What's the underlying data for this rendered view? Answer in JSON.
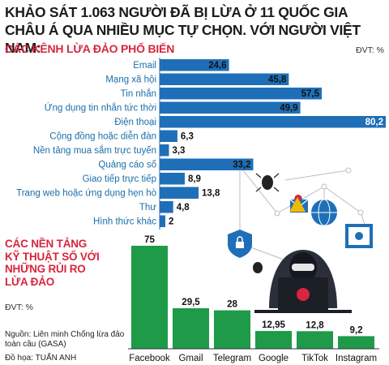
{
  "title": "KHẢO SÁT 1.063 NGƯỜI ĐÃ BỊ LỪA Ở 11 QUỐC GIA CHÂU Á QUA NHIỀU MỤC TỰ CHỌN. VỚI NGƯỜI VIỆT NAM:",
  "source_text": "Nguồn: Liên minh Chống lừa đảo toàn cầu (GASA)",
  "credit": "Đồ họa: TUẤN ANH",
  "colors": {
    "bar_blue": "#1f6fb8",
    "bar_green": "#1e9a48",
    "accent_red": "#d7263d",
    "label_blue": "#1b6ea8"
  },
  "chart_data": [
    {
      "type": "bar",
      "orientation": "horizontal",
      "title": "CÁC KÊNH LỪA ĐẢO PHỔ BIẾN",
      "unit_label": "ĐVT: %",
      "categories": [
        "Email",
        "Mạng xã hội",
        "Tin nhắn",
        "Ứng dụng tin nhắn tức thời",
        "Điện thoại",
        "Cộng đồng hoặc diễn đàn",
        "Nền tảng mua sắm trực tuyến",
        "Quảng cáo số",
        "Giao tiếp trực tiếp",
        "Trang web hoặc ứng dụng hẹn hò",
        "Thư",
        "Hình thức khác"
      ],
      "values": [
        24.6,
        45.8,
        57.5,
        49.9,
        80.2,
        6.3,
        3.3,
        33.2,
        8.9,
        13.8,
        4.8,
        2
      ],
      "value_labels": [
        "24,6",
        "45,8",
        "57,5",
        "49,9",
        "80,2",
        "6,3",
        "3,3",
        "33,2",
        "8,9",
        "13,8",
        "4,8",
        "2"
      ],
      "xlim": [
        0,
        80.2
      ]
    },
    {
      "type": "bar",
      "orientation": "vertical",
      "title": "CÁC NỀN TẢNG KỸ THUẬT SỐ VỚI NHỮNG RỦI RO LỪA ĐẢO",
      "unit_label": "ĐVT: %",
      "categories": [
        "Facebook",
        "Gmail",
        "Telegram",
        "Google",
        "TikTok",
        "Instagram"
      ],
      "values": [
        75,
        29.5,
        28,
        12.95,
        12.8,
        9.2
      ],
      "value_labels": [
        "75",
        "29,5",
        "28",
        "12,95",
        "12,8",
        "9,2"
      ],
      "ylim": [
        0,
        75
      ]
    }
  ]
}
